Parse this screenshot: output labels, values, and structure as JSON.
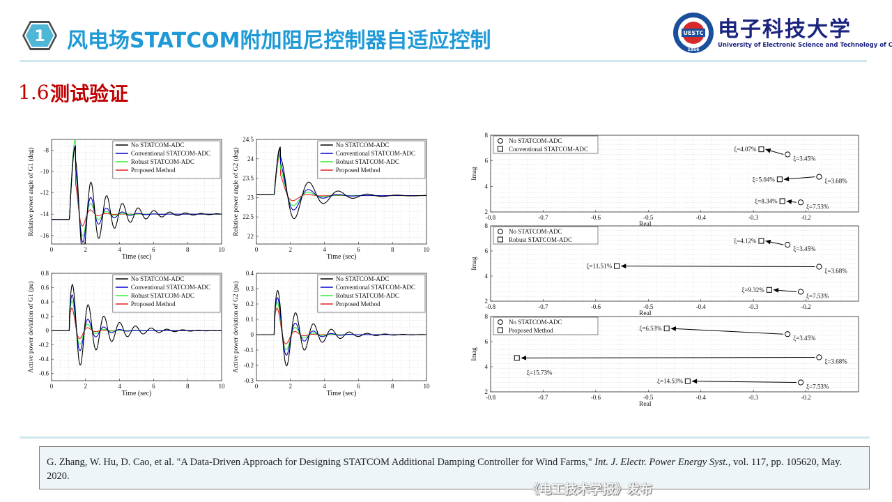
{
  "header": {
    "badge_number": "1",
    "title": "风电场STATCOM附加阻尼控制器自适应控制",
    "logo_cn": "电子科技大学",
    "logo_en": "University of Electronic Science and Technology of China",
    "logo_badge_text": "UESTC",
    "logo_year": "1956"
  },
  "section": {
    "number": "1.6",
    "title": "测试验证"
  },
  "colors": {
    "title_blue": "#1f9ad6",
    "section_red": "#c00000",
    "no_adc": "#000000",
    "conventional": "#0000cc",
    "robust": "#33ee33",
    "proposed": "#e02020"
  },
  "chart_data": [
    {
      "type": "line",
      "ylabel": "Relative power angle of G1 (deg)",
      "xlabel": "Time (sec)",
      "xlim": [
        0,
        10
      ],
      "ylim": [
        -16.8,
        -7
      ],
      "xticks": [
        "0",
        "2",
        "4",
        "6",
        "8",
        "10"
      ],
      "yticks": [
        "-16",
        "-14",
        "-12",
        "-10",
        "-8"
      ],
      "legend": "top-right",
      "grid": true,
      "series": [
        {
          "name": "No STATCOM-ADC",
          "color": "#000000",
          "baseline": -14.5,
          "t0": 1.05,
          "peak": -7.7,
          "final": -14.0,
          "f": 1.08,
          "tau": 1.7
        },
        {
          "name": "Conventional STATCOM-ADC",
          "color": "#0000cc",
          "baseline": -14.5,
          "t0": 1.05,
          "peak": -7.6,
          "final": -14.0,
          "f": 1.08,
          "tau": 0.9
        },
        {
          "name": "Robust STATCOM-ADC",
          "color": "#33ee33",
          "baseline": -14.5,
          "t0": 1.05,
          "peak": -7.0,
          "final": -14.0,
          "f": 1.08,
          "tau": 0.65
        },
        {
          "name": "Proposed Method",
          "color": "#e02020",
          "baseline": -14.5,
          "t0": 1.05,
          "peak": -7.6,
          "final": -14.0,
          "f": 1.08,
          "tau": 0.45
        }
      ]
    },
    {
      "type": "line",
      "ylabel": "Relative power angle of G2 (deg)",
      "xlabel": "Time (sec)",
      "xlim": [
        0,
        10
      ],
      "ylim": [
        21.8,
        24.5
      ],
      "xticks": [
        "0",
        "2",
        "4",
        "6",
        "8",
        "10"
      ],
      "yticks": [
        "22",
        "22.5",
        "23",
        "23.5",
        "24",
        "24.5"
      ],
      "legend": "top-right",
      "grid": true,
      "series": [
        {
          "name": "No STATCOM-ADC",
          "color": "#000000",
          "baseline": 23.08,
          "t0": 1.05,
          "peak": 24.3,
          "final": 23.05,
          "f": 0.58,
          "tau": 1.6
        },
        {
          "name": "Conventional STATCOM-ADC",
          "color": "#0000cc",
          "baseline": 23.08,
          "t0": 1.05,
          "peak": 24.25,
          "final": 23.05,
          "f": 0.58,
          "tau": 1.0
        },
        {
          "name": "Robust STATCOM-ADC",
          "color": "#33ee33",
          "baseline": 23.08,
          "t0": 1.05,
          "peak": 24.15,
          "final": 23.05,
          "f": 0.58,
          "tau": 0.8
        },
        {
          "name": "Proposed Method",
          "color": "#e02020",
          "baseline": 23.08,
          "t0": 1.05,
          "peak": 24.1,
          "final": 23.05,
          "f": 0.58,
          "tau": 0.55
        }
      ]
    },
    {
      "type": "line",
      "ylabel": "Active power deviation of G1 (pu)",
      "xlabel": "Time (sec)",
      "xlim": [
        0,
        10
      ],
      "ylim": [
        -0.7,
        0.8
      ],
      "xticks": [
        "0",
        "2",
        "4",
        "6",
        "8",
        "10"
      ],
      "yticks": [
        "-0.6",
        "-0.4",
        "-0.2",
        "0",
        "0.2",
        "0.4",
        "0.6",
        "0.8"
      ],
      "legend": "top-right",
      "grid": true,
      "series": [
        {
          "name": "No STATCOM-ADC",
          "color": "#000000",
          "baseline": 0,
          "t0": 1.05,
          "amp": 0.72,
          "f": 1.08,
          "tau": 1.6
        },
        {
          "name": "Conventional STATCOM-ADC",
          "color": "#0000cc",
          "baseline": 0,
          "t0": 1.05,
          "amp": 0.62,
          "f": 1.08,
          "tau": 0.8
        },
        {
          "name": "Robust STATCOM-ADC",
          "color": "#33ee33",
          "baseline": 0,
          "t0": 1.05,
          "amp": 0.55,
          "f": 1.08,
          "tau": 0.6
        },
        {
          "name": "Proposed Method",
          "color": "#e02020",
          "baseline": 0,
          "t0": 1.05,
          "amp": 0.45,
          "f": 1.08,
          "tau": 0.45
        }
      ]
    },
    {
      "type": "line",
      "ylabel": "Active power deviation of G2 (pu)",
      "xlabel": "Time (sec)",
      "xlim": [
        0,
        10
      ],
      "ylim": [
        -0.3,
        0.4
      ],
      "xticks": [
        "0",
        "2",
        "4",
        "6",
        "8",
        "10"
      ],
      "yticks": [
        "-0.3",
        "-0.2",
        "-0.1",
        "0",
        "0.1",
        "0.2",
        "0.3",
        "0.4"
      ],
      "legend": "top-right",
      "grid": true,
      "series": [
        {
          "name": "No STATCOM-ADC",
          "color": "#000000",
          "baseline": 0,
          "t0": 1.05,
          "amp": 0.33,
          "f": 0.95,
          "tau": 1.5
        },
        {
          "name": "Conventional STATCOM-ADC",
          "color": "#0000cc",
          "baseline": 0,
          "t0": 1.05,
          "amp": 0.3,
          "f": 0.95,
          "tau": 0.9
        },
        {
          "name": "Robust STATCOM-ADC",
          "color": "#33ee33",
          "baseline": 0,
          "t0": 1.05,
          "amp": 0.28,
          "f": 0.95,
          "tau": 0.7
        },
        {
          "name": "Proposed Method",
          "color": "#e02020",
          "baseline": 0,
          "t0": 1.05,
          "amp": 0.25,
          "f": 0.95,
          "tau": 0.5
        }
      ]
    },
    {
      "type": "scatter",
      "xlabel": "Real",
      "ylabel": "Imag",
      "xlim": [
        -0.8,
        -0.1
      ],
      "ylim": [
        2,
        8
      ],
      "xticks": [
        "-0.8",
        "-0.7",
        "-0.6",
        "-0.5",
        "-0.4",
        "-0.3",
        "-0.2"
      ],
      "yticks": [
        "2",
        "4",
        "6",
        "8"
      ],
      "legend": "top-left",
      "grid": true,
      "series": [
        {
          "name": "No STATCOM-ADC",
          "marker": "circle",
          "points": [
            {
              "x": -0.235,
              "y": 6.5,
              "label": "ξ=3.45%"
            },
            {
              "x": -0.175,
              "y": 4.75,
              "label": "ξ=3.68%"
            },
            {
              "x": -0.21,
              "y": 2.75,
              "label": "ξ=7.53%"
            }
          ]
        },
        {
          "name": "Conventional STATCOM-ADC",
          "marker": "square",
          "points": [
            {
              "x": -0.285,
              "y": 6.9,
              "label": "ξ=4.07%"
            },
            {
              "x": -0.25,
              "y": 4.55,
              "label": "ξ=5.04%"
            },
            {
              "x": -0.245,
              "y": 2.85,
              "label": "ξ=8.34%"
            }
          ]
        }
      ]
    },
    {
      "type": "scatter",
      "xlabel": "Real",
      "ylabel": "Imag",
      "xlim": [
        -0.8,
        -0.1
      ],
      "ylim": [
        2,
        8
      ],
      "xticks": [
        "-0.8",
        "-0.7",
        "-0.6",
        "-0.5",
        "-0.4",
        "-0.3",
        "-0.2"
      ],
      "yticks": [
        "2",
        "4",
        "6",
        "8"
      ],
      "legend": "top-left",
      "grid": true,
      "series": [
        {
          "name": "No STATCOM-ADC",
          "marker": "circle",
          "points": [
            {
              "x": -0.235,
              "y": 6.5,
              "label": "ξ=3.45%"
            },
            {
              "x": -0.175,
              "y": 4.75,
              "label": "ξ=3.68%"
            },
            {
              "x": -0.21,
              "y": 2.75,
              "label": "ξ=7.53%"
            }
          ]
        },
        {
          "name": "Robust STATCOM-ADC",
          "marker": "square",
          "points": [
            {
              "x": -0.285,
              "y": 6.8,
              "label": "ξ=4.12%"
            },
            {
              "x": -0.56,
              "y": 4.8,
              "label": "ξ=11.51%"
            },
            {
              "x": -0.27,
              "y": 2.9,
              "label": "ξ=9.32%"
            }
          ]
        }
      ]
    },
    {
      "type": "scatter",
      "xlabel": "Real",
      "ylabel": "Imag",
      "xlim": [
        -0.8,
        -0.1
      ],
      "ylim": [
        2,
        8
      ],
      "xticks": [
        "-0.8",
        "-0.7",
        "-0.6",
        "-0.5",
        "-0.4",
        "-0.3",
        "-0.2"
      ],
      "yticks": [
        "2",
        "4",
        "6",
        "8"
      ],
      "legend": "top-left",
      "grid": true,
      "series": [
        {
          "name": "No STATCOM-ADC",
          "marker": "circle",
          "points": [
            {
              "x": -0.235,
              "y": 6.6,
              "label": "ξ=3.45%"
            },
            {
              "x": -0.175,
              "y": 4.75,
              "label": "ξ=3.68%"
            },
            {
              "x": -0.21,
              "y": 2.75,
              "label": "ξ=7.53%"
            }
          ]
        },
        {
          "name": "Proposed Method",
          "marker": "square",
          "points": [
            {
              "x": -0.465,
              "y": 7.05,
              "label": "ξ=6.53%"
            },
            {
              "x": -0.75,
              "y": 4.7,
              "label": "ξ=15.73%"
            },
            {
              "x": -0.425,
              "y": 2.85,
              "label": "ξ=14.53%"
            }
          ]
        }
      ]
    }
  ],
  "reference": {
    "text_plain": "G. Zhang, W. Hu, D. Cao, et al. \"A Data-Driven Approach for Designing STATCOM Additional Damping Controller for Wind Farms,\" ",
    "journal": "Int. J. Electr. Power Energy Syst.",
    "text_tail": ", vol. 117, pp. 105620, May. 2020."
  },
  "watermark": "《电工技术学报》发布"
}
